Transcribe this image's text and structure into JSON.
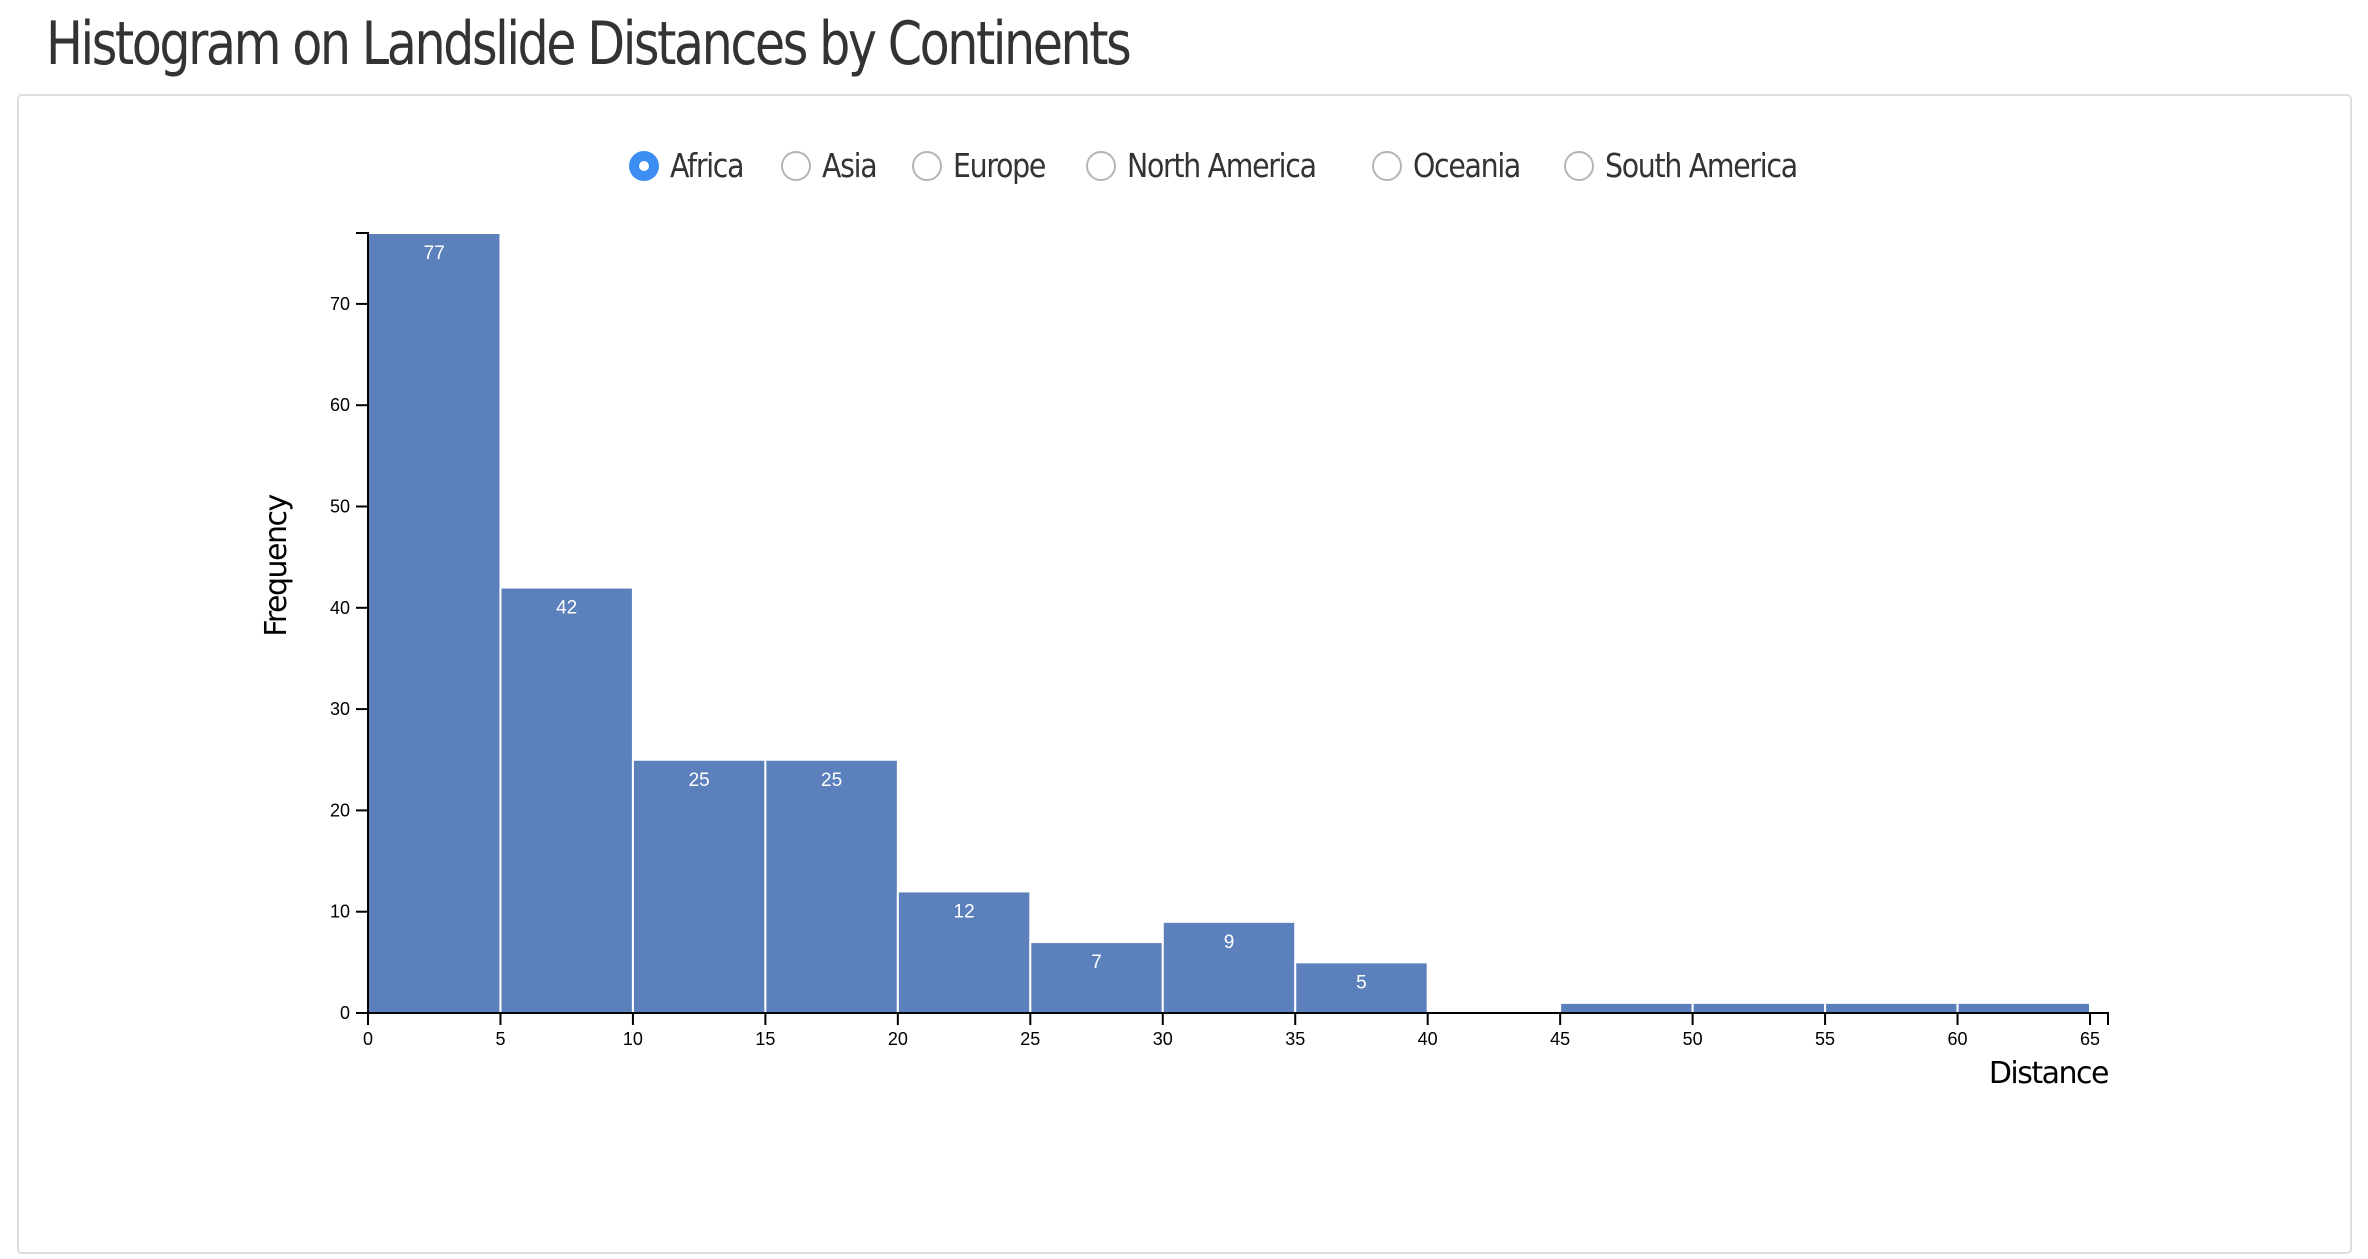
{
  "page": {
    "title": "Histogram on Landslide Distances by Continents"
  },
  "controls": {
    "options": [
      {
        "label": "Africa",
        "checked": true
      },
      {
        "label": "Asia",
        "checked": false
      },
      {
        "label": "Europe",
        "checked": false
      },
      {
        "label": "North America",
        "checked": false
      },
      {
        "label": "Oceania",
        "checked": false
      },
      {
        "label": "South America",
        "checked": false
      }
    ],
    "accent_color": "#3c8ef3"
  },
  "chart_data": {
    "type": "bar",
    "title": "",
    "xlabel": "Distance",
    "ylabel": "Frequency",
    "bar_color": "#5b80bc",
    "xlim": [
      0,
      65
    ],
    "ylim": [
      0,
      77
    ],
    "x_ticks": [
      0,
      5,
      10,
      15,
      20,
      25,
      30,
      35,
      40,
      45,
      50,
      55,
      60,
      65
    ],
    "y_ticks": [
      0,
      10,
      20,
      30,
      40,
      50,
      60,
      70
    ],
    "bins": [
      {
        "x0": 0,
        "x1": 5,
        "count": 77,
        "label": "77"
      },
      {
        "x0": 5,
        "x1": 10,
        "count": 42,
        "label": "42"
      },
      {
        "x0": 10,
        "x1": 15,
        "count": 25,
        "label": "25"
      },
      {
        "x0": 15,
        "x1": 20,
        "count": 25,
        "label": "25"
      },
      {
        "x0": 20,
        "x1": 25,
        "count": 12,
        "label": "12"
      },
      {
        "x0": 25,
        "x1": 30,
        "count": 7,
        "label": "7"
      },
      {
        "x0": 30,
        "x1": 35,
        "count": 9,
        "label": "9"
      },
      {
        "x0": 35,
        "x1": 40,
        "count": 5,
        "label": "5"
      },
      {
        "x0": 40,
        "x1": 45,
        "count": 0,
        "label": ""
      },
      {
        "x0": 45,
        "x1": 50,
        "count": 1,
        "label": ""
      },
      {
        "x0": 50,
        "x1": 55,
        "count": 1,
        "label": ""
      },
      {
        "x0": 55,
        "x1": 60,
        "count": 1,
        "label": ""
      },
      {
        "x0": 60,
        "x1": 65,
        "count": 1,
        "label": ""
      }
    ]
  }
}
